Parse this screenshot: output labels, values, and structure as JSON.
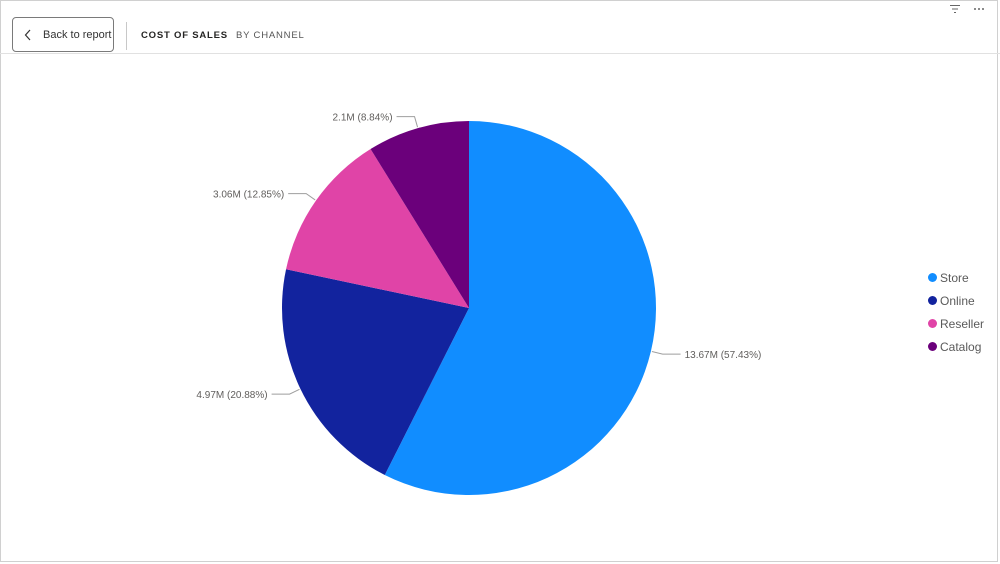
{
  "header": {
    "back_label": "Back to report",
    "crumb_primary": "COST OF SALES",
    "crumb_secondary": "BY CHANNEL",
    "icons": [
      "filter-icon",
      "more-options-icon"
    ]
  },
  "chart_data": {
    "type": "pie",
    "title": "",
    "slices": [
      {
        "name": "Store",
        "value": 13.67,
        "label": "13.67M (57.43%)",
        "percent": 57.43,
        "color": "#118DFF"
      },
      {
        "name": "Online",
        "value": 4.97,
        "label": "4.97M (20.88%)",
        "percent": 20.88,
        "color": "#12239E"
      },
      {
        "name": "Reseller",
        "value": 3.06,
        "label": "3.06M (12.85%)",
        "percent": 12.85,
        "color": "#E044A7"
      },
      {
        "name": "Catalog",
        "value": 2.1,
        "label": "2.1M (8.84%)",
        "percent": 8.84,
        "color": "#6B007B"
      }
    ],
    "legend_position": "right"
  }
}
